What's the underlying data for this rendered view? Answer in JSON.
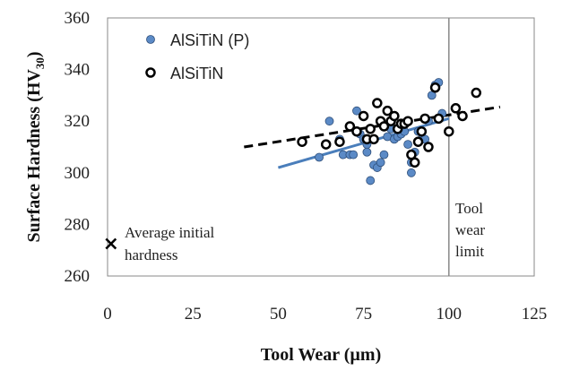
{
  "chart_data": {
    "type": "scatter",
    "xlabel": "Tool Wear (µm)",
    "ylabel_main": "Surface Hardness (HV",
    "ylabel_sub": "30",
    "ylabel_close": ")",
    "xlim": [
      0,
      125
    ],
    "ylim": [
      260,
      360
    ],
    "xticks": [
      0,
      25,
      50,
      75,
      100,
      125
    ],
    "yticks": [
      260,
      280,
      300,
      320,
      340,
      360
    ],
    "grid": false,
    "legend_position": "top-left",
    "colors": {
      "blue_fill": "#5b8ac6",
      "blue_line": "#4a7ebb",
      "black": "#000000"
    },
    "series": [
      {
        "name": "AlSiTiN (P)",
        "marker": "filled-circle",
        "color": "#5b8ac6",
        "points": [
          [
            62,
            306
          ],
          [
            65,
            320
          ],
          [
            68,
            313
          ],
          [
            69,
            307
          ],
          [
            71,
            307
          ],
          [
            72,
            307
          ],
          [
            73,
            324
          ],
          [
            74,
            315
          ],
          [
            75,
            313
          ],
          [
            76,
            311
          ],
          [
            76,
            308
          ],
          [
            77,
            297
          ],
          [
            78,
            303
          ],
          [
            79,
            302
          ],
          [
            80,
            304
          ],
          [
            81,
            307
          ],
          [
            82,
            314
          ],
          [
            83,
            317
          ],
          [
            84,
            313
          ],
          [
            85,
            314
          ],
          [
            86,
            315
          ],
          [
            87,
            316
          ],
          [
            88,
            311
          ],
          [
            89,
            300
          ],
          [
            89,
            304
          ],
          [
            90,
            308
          ],
          [
            91,
            316
          ],
          [
            92,
            313
          ],
          [
            93,
            313
          ],
          [
            94,
            320
          ],
          [
            95,
            330
          ],
          [
            96,
            334
          ],
          [
            97,
            335
          ],
          [
            98,
            323
          ]
        ],
        "trendline": {
          "x": [
            50,
            100
          ],
          "y": [
            302,
            321
          ]
        }
      },
      {
        "name": "AlSiTiN",
        "marker": "open-circle",
        "color": "#000000",
        "points": [
          [
            57,
            312
          ],
          [
            64,
            311
          ],
          [
            68,
            312
          ],
          [
            71,
            318
          ],
          [
            73,
            316
          ],
          [
            75,
            322
          ],
          [
            76,
            313
          ],
          [
            77,
            317
          ],
          [
            78,
            313
          ],
          [
            79,
            327
          ],
          [
            80,
            320
          ],
          [
            81,
            318
          ],
          [
            82,
            324
          ],
          [
            83,
            320
          ],
          [
            84,
            322
          ],
          [
            85,
            317
          ],
          [
            86,
            319
          ],
          [
            87,
            319
          ],
          [
            88,
            320
          ],
          [
            89,
            307
          ],
          [
            90,
            304
          ],
          [
            91,
            312
          ],
          [
            92,
            316
          ],
          [
            93,
            321
          ],
          [
            94,
            310
          ],
          [
            96,
            333
          ],
          [
            97,
            321
          ],
          [
            100,
            316
          ],
          [
            102,
            325
          ],
          [
            104,
            322
          ],
          [
            108,
            331
          ]
        ],
        "trendline": {
          "x": [
            40,
            115
          ],
          "y": [
            310,
            325.5
          ]
        }
      }
    ],
    "initial_point": {
      "x": 1,
      "y": 272.5,
      "marker": "x"
    },
    "annotations": {
      "initial_line1": "Average initial",
      "initial_line2": "hardness",
      "limit_line1": "Tool",
      "limit_line2": "wear",
      "limit_line3": "limit"
    },
    "vertical_line_x": 100
  }
}
